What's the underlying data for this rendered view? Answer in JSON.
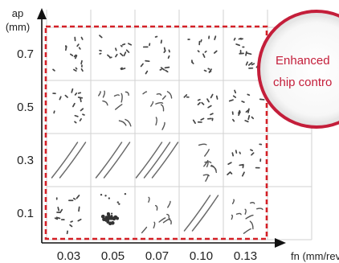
{
  "chart_data": {
    "type": "table",
    "title": "",
    "xlabel": "fn (mm/rev)",
    "ylabel_top": "ap",
    "ylabel_unit": "(mm)",
    "x_ticks": [
      "0.03",
      "0.05",
      "0.07",
      "0.10",
      "0.13"
    ],
    "y_ticks": [
      "0.7",
      "0.5",
      "0.3",
      "0.1"
    ],
    "cells": [
      [
        "fragments",
        "fragments",
        "fragments",
        "fragments",
        "fragments"
      ],
      [
        "fragments",
        "short curls",
        "short curls",
        "fragments",
        "fragments"
      ],
      [
        "long streaks",
        "long streaks",
        "long streaks",
        "short curls",
        "fragments"
      ],
      [
        "fragments",
        "dense cluster",
        "short curls",
        "long streaks",
        "short curls"
      ]
    ],
    "highlight_region": "all cells",
    "highlight_color": "#d42027",
    "annotation": {
      "lines": [
        "Enhanced",
        "chip contro"
      ],
      "text_color": "#c41e3a",
      "ring_color": "#c41e3a"
    },
    "grid": true
  }
}
